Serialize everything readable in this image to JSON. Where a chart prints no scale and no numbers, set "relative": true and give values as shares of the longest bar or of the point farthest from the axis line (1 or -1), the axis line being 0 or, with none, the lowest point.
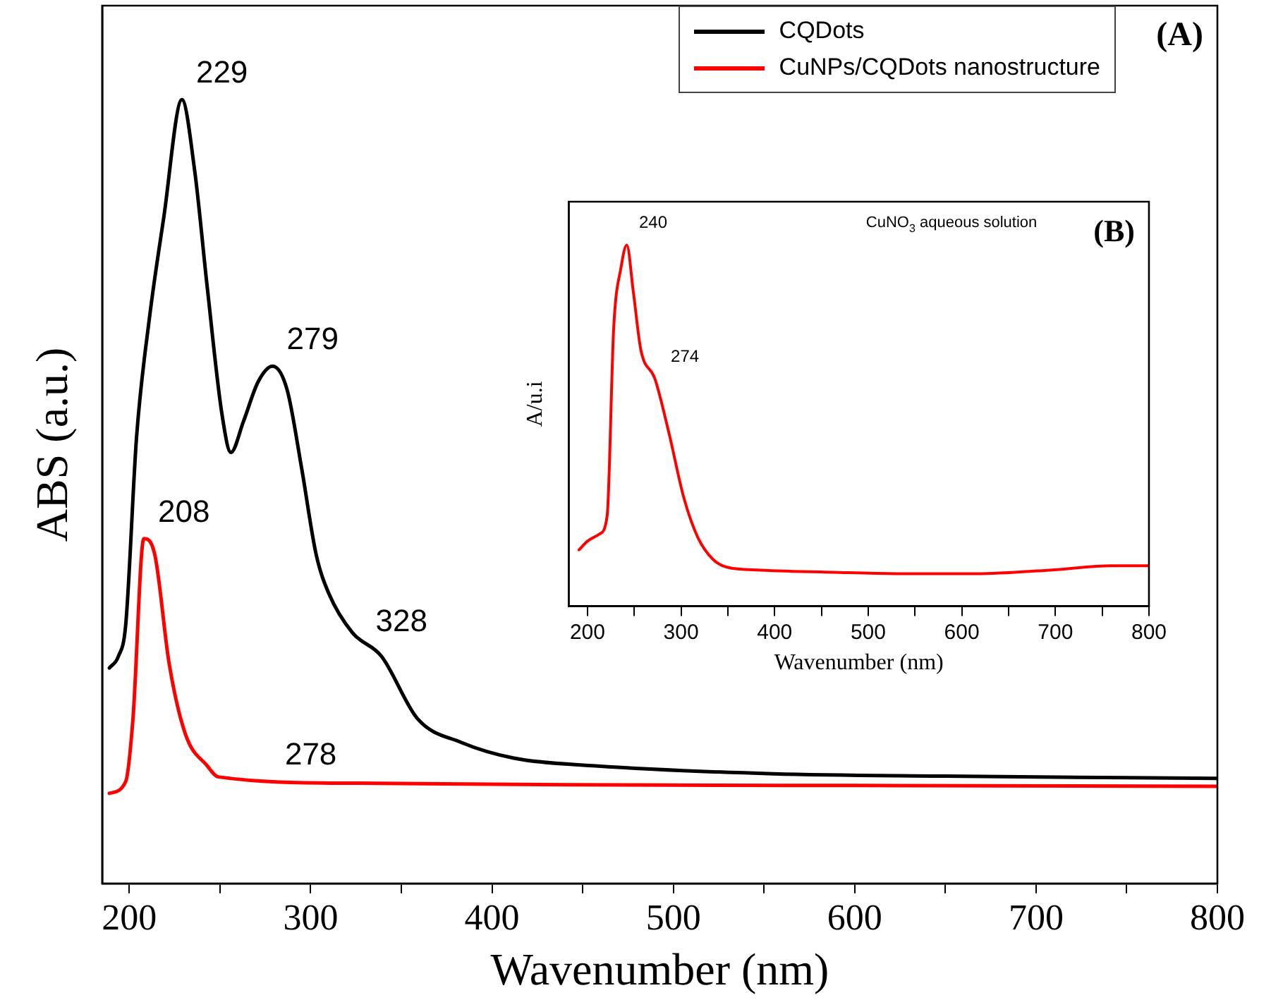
{
  "chart_data": [
    {
      "type": "line",
      "xlabel": "Wavenumber (nm)",
      "ylabel": "ABS (a.u.)",
      "relative": true,
      "xlim": [
        185,
        800
      ],
      "xticks": [
        200,
        {
          "value": 250,
          "label": null
        },
        300,
        {
          "value": 350,
          "label": null
        },
        400,
        {
          "value": 450,
          "label": null
        },
        500,
        {
          "value": 550,
          "label": null
        },
        600,
        {
          "value": 650,
          "label": null
        },
        700,
        {
          "value": 750,
          "label": null
        },
        800
      ],
      "grid": false,
      "legend": "top right",
      "marker": "none",
      "line_style": "solid",
      "series": [
        {
          "name": "CQDots",
          "color": "#000000",
          "x": [
            189,
            194,
            198,
            204,
            211,
            219,
            229,
            236,
            243,
            251,
            256,
            263,
            271,
            279,
            287,
            295,
            303,
            310,
            323,
            339,
            359,
            383,
            412,
            457,
            555,
            650,
            800
          ],
          "values": [
            0.275,
            0.29,
            0.33,
            0.57,
            0.72,
            0.85,
            1.0,
            0.91,
            0.76,
            0.6,
            0.55,
            0.59,
            0.64,
            0.66,
            0.63,
            0.53,
            0.42,
            0.37,
            0.32,
            0.29,
            0.21,
            0.18,
            0.16,
            0.15,
            0.14,
            0.137,
            0.134
          ]
        },
        {
          "name": "CuNPs/CQDots nanostructure",
          "color": "#ff0000",
          "x": [
            189,
            198,
            202,
            208,
            214,
            222,
            231,
            243,
            249,
            323,
            442,
            600,
            800
          ],
          "values": [
            0.115,
            0.13,
            0.21,
            0.44,
            0.42,
            0.28,
            0.19,
            0.15,
            0.136,
            0.128,
            0.126,
            0.125,
            0.124
          ]
        }
      ],
      "annotations": [
        {
          "text": "229",
          "x": 229,
          "y": 1.0
        },
        {
          "text": "279",
          "x": 279,
          "y": 0.66
        },
        {
          "text": "328",
          "x": 328,
          "y": 0.3
        },
        {
          "text": "208",
          "x": 208,
          "y": 0.44
        },
        {
          "text": "278",
          "x": 278,
          "y": 0.13
        },
        "(A)"
      ]
    },
    {
      "type": "line",
      "xlabel": "Wavenumber (nm)",
      "ylabel": "A/u.i",
      "relative": true,
      "xlim": [
        180,
        800
      ],
      "xticks": [
        200,
        {
          "value": 250,
          "label": null
        },
        300,
        {
          "value": 350,
          "label": null
        },
        400,
        {
          "value": 450,
          "label": null
        },
        500,
        {
          "value": 550,
          "label": null
        },
        600,
        {
          "value": 650,
          "label": null
        },
        700,
        {
          "value": 750,
          "label": null
        },
        800
      ],
      "grid": false,
      "marker": "none",
      "line_style": "solid",
      "series": [
        {
          "color": "#ff0000",
          "x": [
            191,
            200,
            213,
            221,
            228,
            236,
            242,
            249,
            257,
            272,
            287,
            303,
            318,
            334,
            349,
            385,
            462,
            539,
            616,
            694,
            760,
            800
          ],
          "values": [
            0.156,
            0.18,
            0.2,
            0.25,
            0.77,
            0.94,
            1.0,
            0.87,
            0.71,
            0.63,
            0.48,
            0.3,
            0.19,
            0.13,
            0.108,
            0.1,
            0.094,
            0.09,
            0.09,
            0.1,
            0.112,
            0.112
          ]
        }
      ],
      "annotations": [
        {
          "text": "240",
          "x": 240,
          "y": 1.0
        },
        {
          "text": "274",
          "x": 274,
          "y": 0.63
        },
        "CuNO$_{3}$ aqueous solution",
        "(B)"
      ]
    }
  ]
}
